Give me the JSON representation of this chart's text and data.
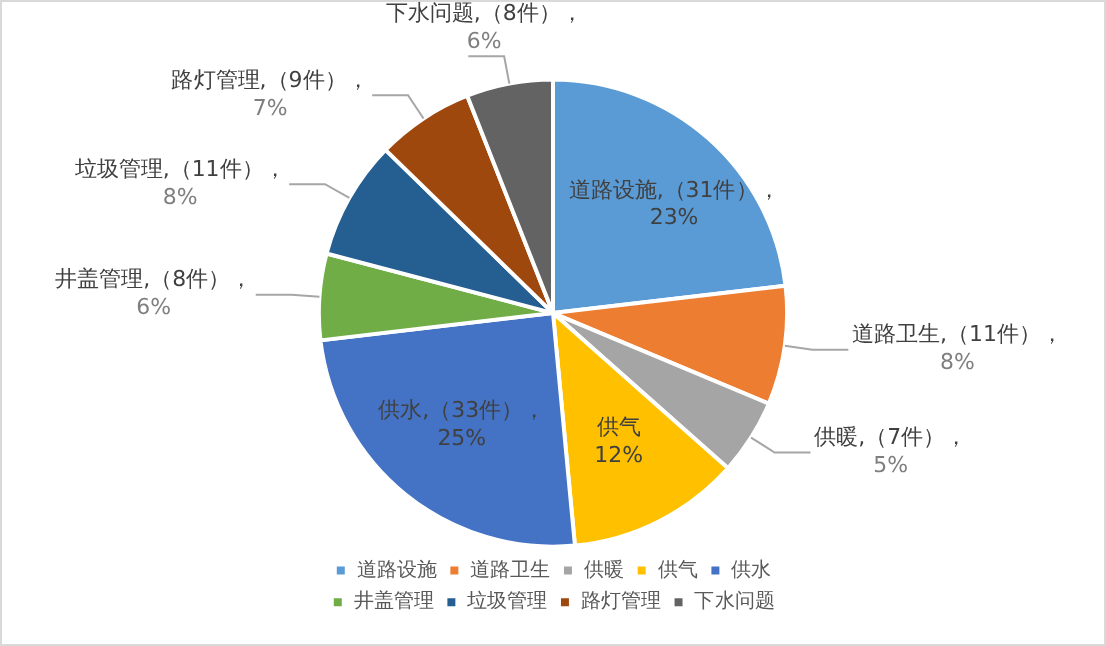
{
  "chart_data": {
    "type": "pie",
    "categories": [
      "道路设施",
      "道路卫生",
      "供暖",
      "供气",
      "供水",
      "井盖管理",
      "垃圾管理",
      "路灯管理",
      "下水问题"
    ],
    "values": [
      31,
      11,
      7,
      16,
      33,
      8,
      11,
      9,
      8
    ],
    "colors": [
      "#5b9bd5",
      "#ed7d31",
      "#a5a5a5",
      "#ffc000",
      "#4472c4",
      "#70ad47",
      "#255e91",
      "#9e480e",
      "#636363"
    ],
    "value_labels": [
      "道路设施,（31件），\n23%",
      "道路卫生,（11件），\n8%",
      "供暖,（7件），\n5%",
      "供气\n12%",
      "供水,（33件），\n25%",
      "井盖管理,（8件），\n6%",
      "垃圾管理,（11件），\n8%",
      "路灯管理,（9件），\n7%",
      "下水问题,（8件），\n6%"
    ],
    "legend": "bottom"
  }
}
